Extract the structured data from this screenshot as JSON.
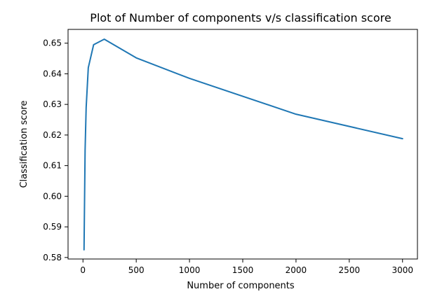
{
  "chart_data": {
    "type": "line",
    "title": "Plot of Number of components v/s classification score",
    "xlabel": "Number of components",
    "ylabel": "Classification score",
    "xlim": [
      -140,
      3140
    ],
    "ylim": [
      0.5795,
      0.6545
    ],
    "xticks": [
      0,
      500,
      1000,
      1500,
      2000,
      2500,
      3000
    ],
    "yticks": [
      0.58,
      0.59,
      0.6,
      0.61,
      0.62,
      0.63,
      0.64,
      0.65
    ],
    "xtick_labels": [
      "0",
      "500",
      "1000",
      "1500",
      "2000",
      "2500",
      "3000"
    ],
    "ytick_labels": [
      "0.58",
      "0.59",
      "0.60",
      "0.61",
      "0.62",
      "0.63",
      "0.64",
      "0.65"
    ],
    "grid": false,
    "series": [
      {
        "color": "#1f77b4",
        "x": [
          10,
          20,
          30,
          50,
          100,
          200,
          500,
          1000,
          2000,
          3000
        ],
        "y": [
          0.5825,
          0.615,
          0.629,
          0.642,
          0.6495,
          0.6513,
          0.6452,
          0.6385,
          0.6268,
          0.6188
        ]
      }
    ]
  }
}
